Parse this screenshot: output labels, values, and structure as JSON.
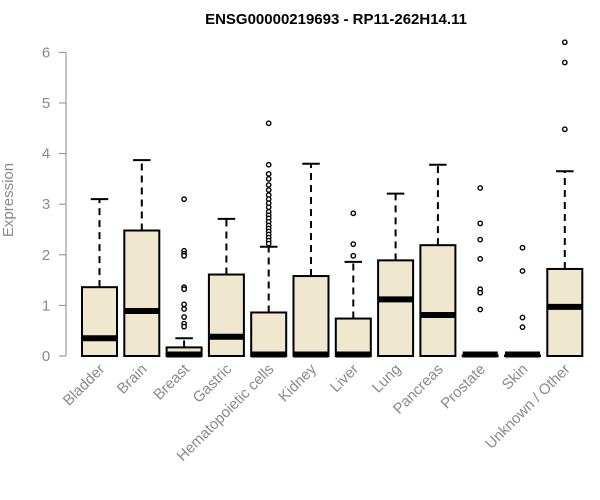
{
  "chart_data": {
    "type": "boxplot",
    "title": "ENSG00000219693 - RP11-262H14.11",
    "ylabel": "Expression",
    "xlabel": "",
    "ylim": [
      0,
      6.3
    ],
    "yticks": [
      0,
      1,
      2,
      3,
      4,
      5,
      6
    ],
    "box_fill": "#efe8cf",
    "categories": [
      "Bladder",
      "Brain",
      "Breast",
      "Gastric",
      "Hematopoietic cells",
      "Kidney",
      "Liver",
      "Lung",
      "Pancreas",
      "Prostate",
      "Skin",
      "Unknown / Other"
    ],
    "boxes": [
      {
        "whisker_low": 0,
        "q1": 0,
        "median": 0.33,
        "q3": 1.36,
        "whisker_high": 3.1,
        "outliers": []
      },
      {
        "whisker_low": 0,
        "q1": 0,
        "median": 0.87,
        "q3": 2.48,
        "whisker_high": 3.87,
        "outliers": []
      },
      {
        "whisker_low": 0,
        "q1": 0,
        "median": 0.01,
        "q3": 0.17,
        "whisker_high": 0.35,
        "outliers": [
          3.1,
          2.08,
          2.02,
          1.98,
          1.36,
          1.32,
          1.02,
          0.93,
          0.77,
          0.64,
          0.58
        ]
      },
      {
        "whisker_low": 0,
        "q1": 0,
        "median": 0.36,
        "q3": 1.61,
        "whisker_high": 2.71,
        "outliers": []
      },
      {
        "whisker_low": 0,
        "q1": 0,
        "median": 0.01,
        "q3": 0.86,
        "whisker_high": 2.16,
        "outliers": [
          4.6,
          3.78,
          3.6,
          3.5,
          3.38,
          3.28,
          3.18,
          3.1,
          3.02,
          2.94,
          2.85,
          2.78,
          2.72,
          2.65,
          2.58,
          2.52,
          2.46,
          2.4,
          2.34,
          2.28,
          2.22
        ]
      },
      {
        "whisker_low": 0,
        "q1": 0,
        "median": 0.01,
        "q3": 1.58,
        "whisker_high": 3.8,
        "outliers": []
      },
      {
        "whisker_low": 0,
        "q1": 0,
        "median": 0.01,
        "q3": 0.74,
        "whisker_high": 1.86,
        "outliers": [
          2.82,
          2.21,
          1.98
        ]
      },
      {
        "whisker_low": 0,
        "q1": 0,
        "median": 1.1,
        "q3": 1.89,
        "whisker_high": 3.21,
        "outliers": []
      },
      {
        "whisker_low": 0,
        "q1": 0,
        "median": 0.79,
        "q3": 2.19,
        "whisker_high": 3.78,
        "outliers": []
      },
      {
        "whisker_low": 0,
        "q1": 0,
        "median": 0.01,
        "q3": 0.01,
        "whisker_high": 0.01,
        "outliers": [
          3.32,
          2.62,
          2.3,
          1.92,
          1.32,
          1.25,
          0.92
        ]
      },
      {
        "whisker_low": 0,
        "q1": 0,
        "median": 0.01,
        "q3": 0.01,
        "whisker_high": 0.01,
        "outliers": [
          2.14,
          1.68,
          0.76,
          0.57
        ]
      },
      {
        "whisker_low": 0,
        "q1": 0,
        "median": 0.95,
        "q3": 1.72,
        "whisker_high": 3.65,
        "outliers": [
          6.2,
          5.8,
          4.48
        ]
      }
    ]
  }
}
